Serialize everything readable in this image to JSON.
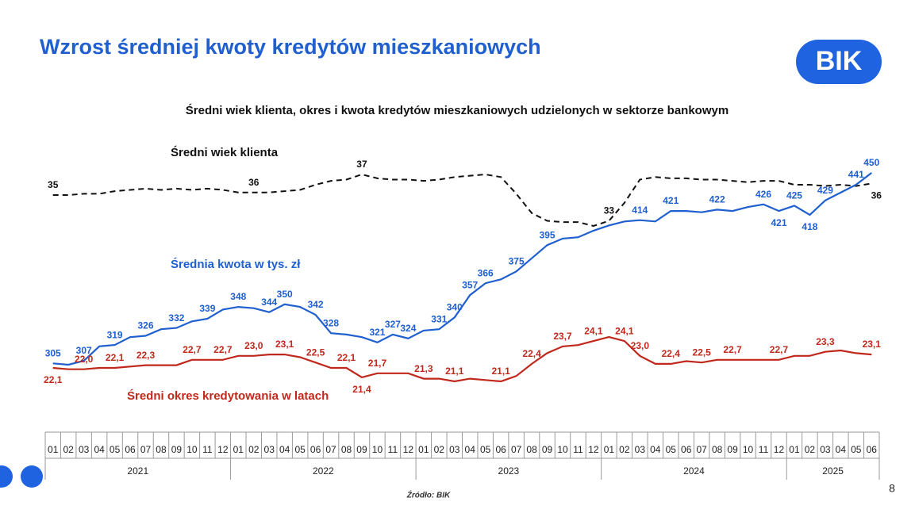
{
  "header": {
    "title": "Wzrost średniej kwoty kredytów mieszkaniowych",
    "logo": "BIK"
  },
  "chart_data": {
    "type": "line",
    "title": "Średni wiek klienta, okres i kwota kredytów mieszkaniowych udzielonych w sektorze bankowym",
    "categories": [
      "01",
      "02",
      "03",
      "04",
      "05",
      "06",
      "07",
      "08",
      "09",
      "10",
      "11",
      "12",
      "01",
      "02",
      "03",
      "04",
      "05",
      "06",
      "07",
      "08",
      "09",
      "10",
      "11",
      "12",
      "01",
      "02",
      "03",
      "04",
      "05",
      "06",
      "07",
      "08",
      "09",
      "10",
      "11",
      "12",
      "01",
      "02",
      "03",
      "04",
      "05",
      "06",
      "07",
      "08",
      "09",
      "10",
      "11",
      "12",
      "01",
      "02",
      "03",
      "04",
      "05",
      "06"
    ],
    "year_groups": [
      "2021",
      "2022",
      "2023",
      "2024",
      "2025"
    ],
    "series": [
      {
        "name": "Średni wiek klienta",
        "color": "#111111",
        "dashed": true,
        "values": [
          35.4,
          35.4,
          35.5,
          35.5,
          35.7,
          35.8,
          35.9,
          35.8,
          35.9,
          35.8,
          35.9,
          35.8,
          35.6,
          35.6,
          35.6,
          35.7,
          35.8,
          36.2,
          36.5,
          36.6,
          37.0,
          36.7,
          36.6,
          36.6,
          36.5,
          36.6,
          36.8,
          36.9,
          37.0,
          36.8,
          35.5,
          34.0,
          33.4,
          33.3,
          33.3,
          33.0,
          33.4,
          34.8,
          36.6,
          36.8,
          36.7,
          36.7,
          36.6,
          36.6,
          36.5,
          36.4,
          36.5,
          36.5,
          36.2,
          36.2,
          36.1,
          36.2,
          36.1,
          36.3
        ],
        "value_labels": [
          "35",
          null,
          null,
          null,
          null,
          null,
          null,
          null,
          null,
          null,
          null,
          null,
          null,
          "36",
          null,
          null,
          null,
          null,
          null,
          null,
          "37",
          null,
          null,
          null,
          null,
          null,
          null,
          null,
          null,
          null,
          null,
          null,
          null,
          null,
          null,
          null,
          "33",
          null,
          null,
          null,
          null,
          null,
          null,
          null,
          null,
          null,
          null,
          null,
          null,
          null,
          null,
          null,
          null,
          "36"
        ]
      },
      {
        "name": "Średnia kwota w tys. zł",
        "color": "#1f5fd0",
        "dashed": false,
        "values": [
          305,
          304,
          307,
          318,
          319,
          325,
          326,
          331,
          332,
          337,
          339,
          346,
          348,
          347,
          344,
          350,
          348,
          342,
          328,
          327,
          325,
          321,
          327,
          324,
          330,
          331,
          340,
          357,
          366,
          369,
          375,
          385,
          395,
          400,
          401,
          406,
          410,
          413,
          414,
          413,
          421,
          421,
          420,
          422,
          421,
          424,
          426,
          421,
          425,
          418,
          429,
          435,
          441,
          450
        ],
        "value_labels": [
          "305",
          null,
          "307",
          null,
          "319",
          null,
          "326",
          null,
          "332",
          null,
          "339",
          null,
          "348",
          null,
          "344",
          "350",
          null,
          "342",
          "328",
          null,
          null,
          "321",
          "327",
          "324",
          null,
          "331",
          "340",
          "357",
          "366",
          null,
          "375",
          null,
          "395",
          null,
          null,
          null,
          null,
          null,
          "414",
          null,
          "421",
          null,
          null,
          "422",
          null,
          null,
          "426",
          "421",
          "425",
          "418",
          "429",
          null,
          "441",
          "450"
        ]
      },
      {
        "name": "Średni okres kredytowania w latach",
        "color": "#c0281c",
        "dashed": false,
        "values": [
          22.1,
          22.0,
          22.0,
          22.1,
          22.1,
          22.2,
          22.3,
          22.3,
          22.3,
          22.7,
          22.7,
          22.7,
          23.0,
          23.0,
          23.1,
          23.1,
          22.9,
          22.5,
          22.1,
          22.1,
          21.4,
          21.7,
          21.7,
          21.7,
          21.3,
          21.3,
          21.1,
          21.3,
          21.2,
          21.1,
          21.5,
          22.4,
          23.2,
          23.7,
          23.8,
          24.1,
          24.4,
          24.1,
          23.0,
          22.4,
          22.4,
          22.6,
          22.5,
          22.7,
          22.7,
          22.7,
          22.7,
          22.7,
          23.0,
          23.0,
          23.3,
          23.4,
          23.2,
          23.1
        ],
        "value_labels": [
          "22,1",
          null,
          "22,0",
          null,
          "22,1",
          null,
          "22,3",
          null,
          null,
          "22,7",
          null,
          "22,7",
          null,
          "23,0",
          null,
          "23,1",
          null,
          "22,5",
          null,
          "22,1",
          "21,4",
          "21,7",
          null,
          null,
          "21,3",
          null,
          "21,1",
          null,
          null,
          "21,1",
          null,
          "22,4",
          null,
          "23,7",
          null,
          "24,1",
          null,
          "24,1",
          "23,0",
          null,
          "22,4",
          null,
          "22,5",
          null,
          "22,7",
          null,
          null,
          "22,7",
          null,
          null,
          "23,3",
          null,
          null,
          "23,1"
        ]
      }
    ],
    "source": "Źródło: BIK"
  },
  "footer": {
    "page": "8"
  }
}
